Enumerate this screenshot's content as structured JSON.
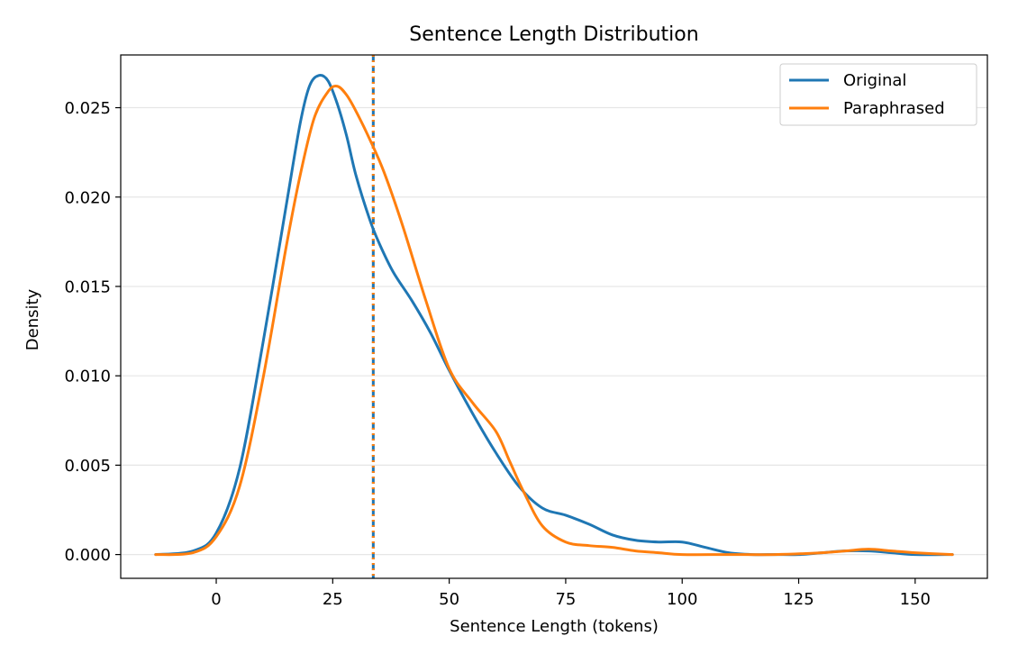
{
  "chart_data": {
    "type": "line",
    "title": "Sentence Length Distribution",
    "xlabel": "Sentence Length (tokens)",
    "ylabel": "Density",
    "xlim": [
      -20.5,
      165.5
    ],
    "ylim": [
      -0.00133,
      0.02795
    ],
    "xticks": [
      0,
      25,
      50,
      75,
      100,
      125,
      150
    ],
    "xtick_labels": [
      "0",
      "25",
      "50",
      "75",
      "100",
      "125",
      "150"
    ],
    "yticks": [
      0.0,
      0.005,
      0.01,
      0.015,
      0.02,
      0.025
    ],
    "ytick_labels": [
      "0.000",
      "0.005",
      "0.010",
      "0.015",
      "0.020",
      "0.025"
    ],
    "grid": "y",
    "legend_position": "top-right",
    "series": [
      {
        "name": "Original",
        "color": "#1f77b4",
        "x": [
          -13,
          -5,
          0,
          5,
          10,
          15,
          18,
          20,
          22,
          24,
          26,
          28,
          30,
          33,
          35,
          38,
          42,
          46,
          50,
          55,
          60,
          65,
          70,
          75,
          80,
          85,
          90,
          95,
          100,
          105,
          110,
          115,
          120,
          125,
          130,
          135,
          140,
          145,
          150,
          158
        ],
        "y": [
          0.0,
          0.0002,
          0.0012,
          0.0048,
          0.0118,
          0.0195,
          0.0241,
          0.0262,
          0.0268,
          0.0265,
          0.0252,
          0.0234,
          0.0212,
          0.0187,
          0.0174,
          0.0158,
          0.0142,
          0.0124,
          0.0103,
          0.0079,
          0.0057,
          0.0038,
          0.0026,
          0.0022,
          0.0017,
          0.0011,
          0.0008,
          0.0007,
          0.0007,
          0.0004,
          0.0001,
          0.0,
          0.0,
          0.0,
          0.0001,
          0.0002,
          0.0002,
          0.0001,
          0.0,
          0.0
        ]
      },
      {
        "name": "Paraphrased",
        "color": "#ff7f0e",
        "x": [
          -13,
          -5,
          0,
          5,
          10,
          15,
          18,
          21,
          24,
          26,
          28,
          30,
          33,
          36,
          40,
          45,
          50,
          55,
          60,
          63,
          66,
          70,
          75,
          80,
          85,
          90,
          95,
          100,
          110,
          120,
          130,
          135,
          140,
          145,
          150,
          158
        ],
        "y": [
          0.0,
          0.0001,
          0.001,
          0.0038,
          0.0098,
          0.0172,
          0.0212,
          0.0244,
          0.0259,
          0.0262,
          0.0257,
          0.0248,
          0.0232,
          0.0214,
          0.0184,
          0.0142,
          0.0104,
          0.0085,
          0.0069,
          0.0052,
          0.0035,
          0.0016,
          0.0007,
          0.0005,
          0.0004,
          0.0002,
          0.0001,
          0.0,
          0.0,
          0.0,
          0.0001,
          0.0002,
          0.0003,
          0.0002,
          0.0001,
          0.0
        ]
      }
    ],
    "reference_lines": [
      {
        "orientation": "vertical",
        "x": 33.7,
        "color": "#1f77b4",
        "style": "dashed"
      },
      {
        "orientation": "vertical",
        "x": 33.7,
        "color": "#ff7f0e",
        "style": "dotted"
      }
    ]
  }
}
